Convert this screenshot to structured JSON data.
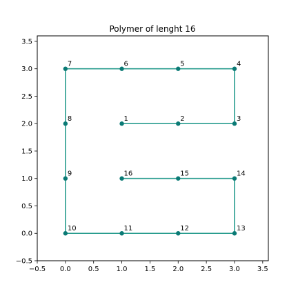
{
  "chart_data": {
    "type": "line",
    "title": "Polymer of lenght 16",
    "xlabel": "",
    "ylabel": "",
    "xlim": [
      -0.5,
      3.6
    ],
    "ylim": [
      -0.5,
      3.6
    ],
    "xticks": [
      -0.5,
      0.0,
      0.5,
      1.0,
      1.5,
      2.0,
      2.5,
      3.0,
      3.5
    ],
    "yticks": [
      -0.5,
      0.0,
      0.5,
      1.0,
      1.5,
      2.0,
      2.5,
      3.0,
      3.5
    ],
    "xtick_labels": [
      "−0.5",
      "0.0",
      "0.5",
      "1.0",
      "1.5",
      "2.0",
      "2.5",
      "3.0",
      "3.5"
    ],
    "ytick_labels": [
      "−0.5",
      "0.0",
      "0.5",
      "1.0",
      "1.5",
      "2.0",
      "2.5",
      "3.0",
      "3.5"
    ],
    "grid": false,
    "series": [
      {
        "color": "#2a9d8f",
        "marker_color": "#0b7a75",
        "points": [
          {
            "label": "1",
            "x": 1,
            "y": 2
          },
          {
            "label": "2",
            "x": 2,
            "y": 2
          },
          {
            "label": "3",
            "x": 3,
            "y": 2
          },
          {
            "label": "4",
            "x": 3,
            "y": 3
          },
          {
            "label": "5",
            "x": 2,
            "y": 3
          },
          {
            "label": "6",
            "x": 1,
            "y": 3
          },
          {
            "label": "7",
            "x": 0,
            "y": 3
          },
          {
            "label": "8",
            "x": 0,
            "y": 2
          },
          {
            "label": "9",
            "x": 0,
            "y": 1
          },
          {
            "label": "10",
            "x": 0,
            "y": 0
          },
          {
            "label": "11",
            "x": 1,
            "y": 0
          },
          {
            "label": "12",
            "x": 2,
            "y": 0
          },
          {
            "label": "13",
            "x": 3,
            "y": 0
          },
          {
            "label": "14",
            "x": 3,
            "y": 1
          },
          {
            "label": "15",
            "x": 2,
            "y": 1
          },
          {
            "label": "16",
            "x": 1,
            "y": 1
          }
        ]
      }
    ]
  }
}
